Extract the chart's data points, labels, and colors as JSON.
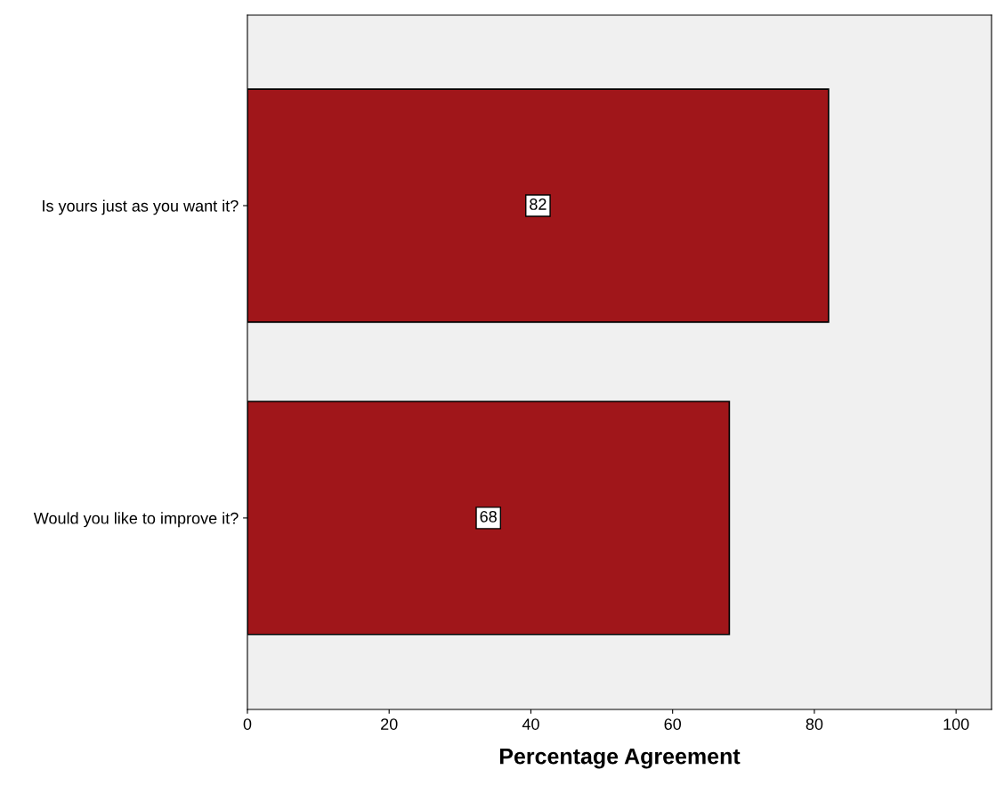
{
  "chart_data": {
    "type": "bar",
    "orientation": "horizontal",
    "xlabel": "Percentage Agreement",
    "categories": [
      "Is yours just as you want it?",
      "Would you like to improve it?"
    ],
    "values": [
      82,
      68
    ],
    "color": "#a0161a",
    "xlim": [
      0,
      105
    ],
    "xticks": [
      0,
      20,
      40,
      60,
      80,
      100
    ],
    "grid": false,
    "data_labels": true
  }
}
